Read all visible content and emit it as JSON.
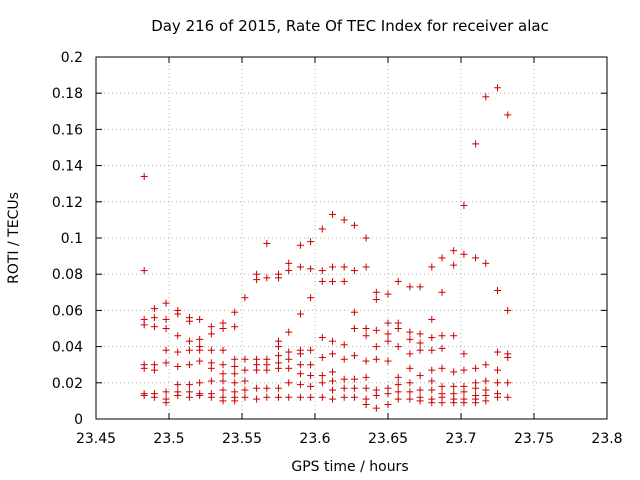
{
  "chart_data": {
    "type": "scatter",
    "title": "Day 216 of 2015, Rate Of TEC Index for receiver alac",
    "xlabel": "GPS time / hours",
    "ylabel": "ROTI / TECUs",
    "xlim": [
      23.45,
      23.8
    ],
    "ylim": [
      0,
      0.2
    ],
    "x_ticks": [
      "23.45",
      "23.5",
      "23.55",
      "23.6",
      "23.65",
      "23.7",
      "23.75",
      "23.8"
    ],
    "y_ticks": [
      "0",
      "0.02",
      "0.04",
      "0.06",
      "0.08",
      "0.1",
      "0.12",
      "0.14",
      "0.16",
      "0.18",
      "0.2"
    ],
    "grid": true,
    "marker": "+",
    "marker_color": "#cc0000",
    "series": [
      {
        "name": "ROTI",
        "points": [
          [
            23.483,
            0.134
          ],
          [
            23.483,
            0.082
          ],
          [
            23.483,
            0.055
          ],
          [
            23.483,
            0.052
          ],
          [
            23.483,
            0.03
          ],
          [
            23.483,
            0.028
          ],
          [
            23.483,
            0.014
          ],
          [
            23.483,
            0.013
          ],
          [
            23.49,
            0.061
          ],
          [
            23.49,
            0.056
          ],
          [
            23.49,
            0.051
          ],
          [
            23.49,
            0.03
          ],
          [
            23.49,
            0.027
          ],
          [
            23.49,
            0.014
          ],
          [
            23.49,
            0.012
          ],
          [
            23.498,
            0.064
          ],
          [
            23.498,
            0.055
          ],
          [
            23.498,
            0.05
          ],
          [
            23.498,
            0.038
          ],
          [
            23.498,
            0.031
          ],
          [
            23.498,
            0.015
          ],
          [
            23.498,
            0.011
          ],
          [
            23.498,
            0.009
          ],
          [
            23.506,
            0.06
          ],
          [
            23.506,
            0.058
          ],
          [
            23.506,
            0.046
          ],
          [
            23.506,
            0.037
          ],
          [
            23.506,
            0.029
          ],
          [
            23.506,
            0.019
          ],
          [
            23.506,
            0.015
          ],
          [
            23.506,
            0.013
          ],
          [
            23.514,
            0.056
          ],
          [
            23.514,
            0.054
          ],
          [
            23.514,
            0.043
          ],
          [
            23.514,
            0.038
          ],
          [
            23.514,
            0.03
          ],
          [
            23.514,
            0.019
          ],
          [
            23.514,
            0.015
          ],
          [
            23.514,
            0.012
          ],
          [
            23.521,
            0.055
          ],
          [
            23.521,
            0.044
          ],
          [
            23.521,
            0.04
          ],
          [
            23.521,
            0.038
          ],
          [
            23.521,
            0.032
          ],
          [
            23.521,
            0.02
          ],
          [
            23.521,
            0.014
          ],
          [
            23.521,
            0.013
          ],
          [
            23.529,
            0.051
          ],
          [
            23.529,
            0.047
          ],
          [
            23.529,
            0.038
          ],
          [
            23.529,
            0.031
          ],
          [
            23.529,
            0.028
          ],
          [
            23.529,
            0.021
          ],
          [
            23.529,
            0.014
          ],
          [
            23.529,
            0.012
          ],
          [
            23.537,
            0.053
          ],
          [
            23.537,
            0.05
          ],
          [
            23.537,
            0.038
          ],
          [
            23.537,
            0.03
          ],
          [
            23.537,
            0.025
          ],
          [
            23.537,
            0.021
          ],
          [
            23.537,
            0.016
          ],
          [
            23.537,
            0.012
          ],
          [
            23.537,
            0.01
          ],
          [
            23.545,
            0.059
          ],
          [
            23.545,
            0.051
          ],
          [
            23.545,
            0.033
          ],
          [
            23.545,
            0.029
          ],
          [
            23.545,
            0.025
          ],
          [
            23.545,
            0.02
          ],
          [
            23.545,
            0.015
          ],
          [
            23.545,
            0.012
          ],
          [
            23.545,
            0.01
          ],
          [
            23.552,
            0.067
          ],
          [
            23.552,
            0.033
          ],
          [
            23.552,
            0.027
          ],
          [
            23.552,
            0.021
          ],
          [
            23.552,
            0.016
          ],
          [
            23.552,
            0.012
          ],
          [
            23.56,
            0.08
          ],
          [
            23.56,
            0.077
          ],
          [
            23.56,
            0.033
          ],
          [
            23.56,
            0.03
          ],
          [
            23.56,
            0.027
          ],
          [
            23.56,
            0.017
          ],
          [
            23.56,
            0.011
          ],
          [
            23.567,
            0.097
          ],
          [
            23.567,
            0.078
          ],
          [
            23.567,
            0.033
          ],
          [
            23.567,
            0.03
          ],
          [
            23.567,
            0.027
          ],
          [
            23.567,
            0.017
          ],
          [
            23.567,
            0.012
          ],
          [
            23.575,
            0.08
          ],
          [
            23.575,
            0.078
          ],
          [
            23.575,
            0.043
          ],
          [
            23.575,
            0.04
          ],
          [
            23.575,
            0.035
          ],
          [
            23.575,
            0.031
          ],
          [
            23.575,
            0.028
          ],
          [
            23.575,
            0.017
          ],
          [
            23.575,
            0.012
          ],
          [
            23.582,
            0.086
          ],
          [
            23.582,
            0.082
          ],
          [
            23.582,
            0.048
          ],
          [
            23.582,
            0.037
          ],
          [
            23.582,
            0.033
          ],
          [
            23.582,
            0.028
          ],
          [
            23.582,
            0.02
          ],
          [
            23.582,
            0.012
          ],
          [
            23.59,
            0.096
          ],
          [
            23.59,
            0.084
          ],
          [
            23.59,
            0.058
          ],
          [
            23.59,
            0.038
          ],
          [
            23.59,
            0.036
          ],
          [
            23.59,
            0.03
          ],
          [
            23.59,
            0.025
          ],
          [
            23.59,
            0.019
          ],
          [
            23.59,
            0.012
          ],
          [
            23.597,
            0.098
          ],
          [
            23.597,
            0.083
          ],
          [
            23.597,
            0.067
          ],
          [
            23.597,
            0.038
          ],
          [
            23.597,
            0.03
          ],
          [
            23.597,
            0.024
          ],
          [
            23.597,
            0.018
          ],
          [
            23.597,
            0.012
          ],
          [
            23.605,
            0.105
          ],
          [
            23.605,
            0.082
          ],
          [
            23.605,
            0.076
          ],
          [
            23.605,
            0.045
          ],
          [
            23.605,
            0.034
          ],
          [
            23.605,
            0.024
          ],
          [
            23.605,
            0.02
          ],
          [
            23.605,
            0.012
          ],
          [
            23.612,
            0.113
          ],
          [
            23.612,
            0.084
          ],
          [
            23.612,
            0.076
          ],
          [
            23.612,
            0.043
          ],
          [
            23.612,
            0.036
          ],
          [
            23.612,
            0.026
          ],
          [
            23.612,
            0.021
          ],
          [
            23.612,
            0.016
          ],
          [
            23.612,
            0.011
          ],
          [
            23.62,
            0.11
          ],
          [
            23.62,
            0.084
          ],
          [
            23.62,
            0.076
          ],
          [
            23.62,
            0.041
          ],
          [
            23.62,
            0.033
          ],
          [
            23.62,
            0.022
          ],
          [
            23.62,
            0.017
          ],
          [
            23.62,
            0.012
          ],
          [
            23.627,
            0.107
          ],
          [
            23.627,
            0.082
          ],
          [
            23.627,
            0.059
          ],
          [
            23.627,
            0.05
          ],
          [
            23.627,
            0.035
          ],
          [
            23.627,
            0.022
          ],
          [
            23.627,
            0.017
          ],
          [
            23.627,
            0.012
          ],
          [
            23.635,
            0.1
          ],
          [
            23.635,
            0.084
          ],
          [
            23.635,
            0.05
          ],
          [
            23.635,
            0.046
          ],
          [
            23.635,
            0.032
          ],
          [
            23.635,
            0.023
          ],
          [
            23.635,
            0.017
          ],
          [
            23.635,
            0.011
          ],
          [
            23.635,
            0.008
          ],
          [
            23.642,
            0.07
          ],
          [
            23.642,
            0.066
          ],
          [
            23.642,
            0.049
          ],
          [
            23.642,
            0.04
          ],
          [
            23.642,
            0.033
          ],
          [
            23.642,
            0.016
          ],
          [
            23.642,
            0.013
          ],
          [
            23.642,
            0.006
          ],
          [
            23.65,
            0.069
          ],
          [
            23.65,
            0.053
          ],
          [
            23.65,
            0.047
          ],
          [
            23.65,
            0.043
          ],
          [
            23.65,
            0.032
          ],
          [
            23.65,
            0.017
          ],
          [
            23.65,
            0.014
          ],
          [
            23.65,
            0.008
          ],
          [
            23.657,
            0.076
          ],
          [
            23.657,
            0.053
          ],
          [
            23.657,
            0.05
          ],
          [
            23.657,
            0.04
          ],
          [
            23.657,
            0.023
          ],
          [
            23.657,
            0.019
          ],
          [
            23.657,
            0.015
          ],
          [
            23.657,
            0.011
          ],
          [
            23.665,
            0.073
          ],
          [
            23.665,
            0.048
          ],
          [
            23.665,
            0.044
          ],
          [
            23.665,
            0.036
          ],
          [
            23.665,
            0.028
          ],
          [
            23.665,
            0.02
          ],
          [
            23.665,
            0.015
          ],
          [
            23.665,
            0.011
          ],
          [
            23.672,
            0.073
          ],
          [
            23.672,
            0.047
          ],
          [
            23.672,
            0.042
          ],
          [
            23.672,
            0.038
          ],
          [
            23.672,
            0.024
          ],
          [
            23.672,
            0.016
          ],
          [
            23.672,
            0.012
          ],
          [
            23.672,
            0.01
          ],
          [
            23.68,
            0.084
          ],
          [
            23.68,
            0.055
          ],
          [
            23.68,
            0.045
          ],
          [
            23.68,
            0.038
          ],
          [
            23.68,
            0.027
          ],
          [
            23.68,
            0.021
          ],
          [
            23.68,
            0.016
          ],
          [
            23.68,
            0.011
          ],
          [
            23.68,
            0.009
          ],
          [
            23.687,
            0.089
          ],
          [
            23.687,
            0.07
          ],
          [
            23.687,
            0.046
          ],
          [
            23.687,
            0.039
          ],
          [
            23.687,
            0.028
          ],
          [
            23.687,
            0.018
          ],
          [
            23.687,
            0.014
          ],
          [
            23.687,
            0.012
          ],
          [
            23.687,
            0.009
          ],
          [
            23.695,
            0.093
          ],
          [
            23.695,
            0.085
          ],
          [
            23.695,
            0.046
          ],
          [
            23.695,
            0.026
          ],
          [
            23.695,
            0.018
          ],
          [
            23.695,
            0.014
          ],
          [
            23.695,
            0.011
          ],
          [
            23.695,
            0.009
          ],
          [
            23.702,
            0.118
          ],
          [
            23.702,
            0.091
          ],
          [
            23.702,
            0.036
          ],
          [
            23.702,
            0.027
          ],
          [
            23.702,
            0.018
          ],
          [
            23.702,
            0.015
          ],
          [
            23.702,
            0.011
          ],
          [
            23.702,
            0.009
          ],
          [
            23.71,
            0.152
          ],
          [
            23.71,
            0.089
          ],
          [
            23.71,
            0.028
          ],
          [
            23.71,
            0.02
          ],
          [
            23.71,
            0.017
          ],
          [
            23.71,
            0.013
          ],
          [
            23.71,
            0.011
          ],
          [
            23.71,
            0.009
          ],
          [
            23.717,
            0.178
          ],
          [
            23.717,
            0.086
          ],
          [
            23.717,
            0.03
          ],
          [
            23.717,
            0.021
          ],
          [
            23.717,
            0.016
          ],
          [
            23.717,
            0.013
          ],
          [
            23.717,
            0.01
          ],
          [
            23.725,
            0.183
          ],
          [
            23.725,
            0.071
          ],
          [
            23.725,
            0.037
          ],
          [
            23.725,
            0.027
          ],
          [
            23.725,
            0.02
          ],
          [
            23.725,
            0.014
          ],
          [
            23.725,
            0.012
          ],
          [
            23.732,
            0.168
          ],
          [
            23.732,
            0.06
          ],
          [
            23.732,
            0.036
          ],
          [
            23.732,
            0.034
          ],
          [
            23.732,
            0.02
          ],
          [
            23.732,
            0.012
          ]
        ]
      }
    ]
  }
}
